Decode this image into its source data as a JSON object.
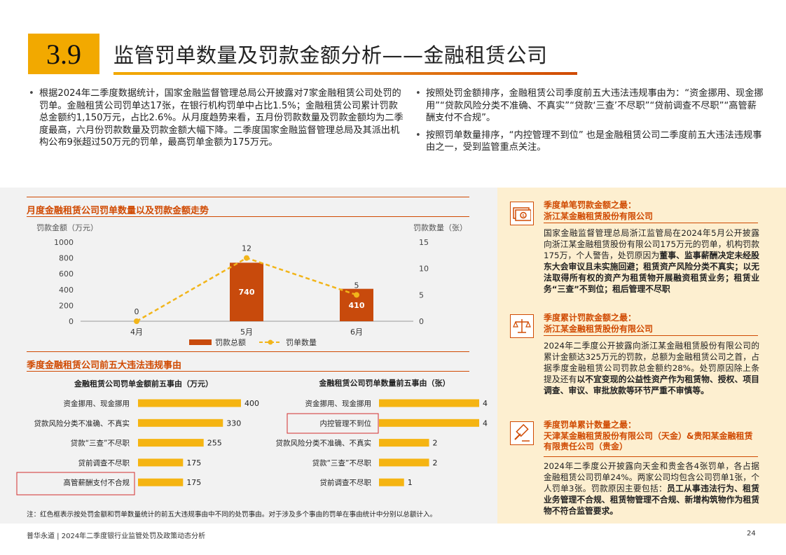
{
  "header": {
    "section_number": "3.9",
    "title": "监管罚单数量及罚款金额分析——金融租赁公司"
  },
  "bullets_left": [
    "根据2024年二季度数据统计，国家金融监督管理总局公开披露对7家金融租赁公司处罚的罚单。金融租赁公司罚单达17张，在银行机构罚单中占比1.5%；金融租赁公司累计罚款总金额约1,150万元，占比2.6%。从月度趋势来看，五月份罚款数量及罚款金额均为二季度最高，六月份罚款数量及罚款金额大幅下降。二季度国家金融监督管理总局及其派出机构公布9张超过50万元的罚单，最高罚单金额为175万元。"
  ],
  "bullets_right": [
    "按照处罚金额排序，金融租赁公司季度前五大违法违规事由为：“资金挪用、现金挪用”“贷款风险分类不准确、不真实”“贷款‘三查’不尽职”“贷前调查不尽职”“高管薪酬支付不合规”。",
    "按照罚单数量排序，“内控管理不到位” 也是金融租赁公司二季度前五大违法违规事由之一，受到监管重点关注。"
  ],
  "trend_section": {
    "title": "月度金融租赁公司罚单数量以及罚款金额走势"
  },
  "chart_data": [
    {
      "type": "bar",
      "combo": "bar+line",
      "categories": [
        "4月",
        "5月",
        "6月"
      ],
      "series": [
        {
          "name": "罚款总额",
          "type": "bar",
          "axis": "left",
          "values": [
            0,
            740,
            410
          ],
          "data_labels": [
            "",
            "740",
            "410"
          ]
        },
        {
          "name": "罚单数量",
          "type": "line",
          "style": "dashed",
          "axis": "right",
          "values": [
            0,
            12,
            5
          ],
          "data_labels": [
            "0",
            "12",
            "5"
          ]
        }
      ],
      "ylabel": "罚款金额（万元）",
      "y2label": "罚款数量（张）",
      "ylim": [
        0,
        1000
      ],
      "yticks": [
        "1000",
        "800",
        "600",
        "400",
        "200",
        "0"
      ],
      "y2lim": [
        0,
        15
      ],
      "y2ticks": [
        "15",
        "10",
        "5",
        "0"
      ],
      "grid": false,
      "legend": "bottom",
      "colors": {
        "bar": "#C84A0C",
        "line": "#F2B51A"
      }
    },
    {
      "type": "bar",
      "orientation": "horizontal",
      "title": "金融租赁公司罚单金额前五事由（万元）",
      "categories": [
        "资金挪用、现金挪用",
        "贷款风险分类不准确、不真实",
        "贷款“三查”不尽职",
        "贷前调查不尽职",
        "高管薪酬支付不合规"
      ],
      "values": [
        400,
        330,
        255,
        175,
        175
      ],
      "data_labels": [
        "400",
        "330",
        "255",
        "175",
        "175"
      ],
      "highlight": [
        "高管薪酬支付不合规"
      ],
      "color": "#F5B412"
    },
    {
      "type": "bar",
      "orientation": "horizontal",
      "title": "金融租赁公司罚单数量前五事由（张）",
      "categories": [
        "资金挪用、现金挪用",
        "内控管理不到位",
        "贷款风险分类不准确、不真实",
        "贷款“三查”不尽职",
        "贷前调查不尽职"
      ],
      "values": [
        4,
        4,
        2,
        2,
        1
      ],
      "data_labels": [
        "4",
        "4",
        "2",
        "2",
        "1"
      ],
      "highlight": [
        "内控管理不到位"
      ],
      "color": "#F5B412"
    }
  ],
  "reasons_section": {
    "title": "季度金融租赁公司前五大违法违规事由"
  },
  "note": "注：红色框表示按处罚金额和罚单数量统计的前五大违规事由中不同的处罚事由。对于涉及多个事由的罚单在事由统计中分别以总额计入。",
  "cards": [
    {
      "icon": "money-icon",
      "title_line1": "季度单笔罚款金额之最：",
      "title_line2": "浙江某金融租赁股份有限公司",
      "body_plain": "国家金融监督管理总局浙江监管局在2024年5月公开披露向浙江某金融租赁股份有限公司175万元的罚单，机构罚款175万，个人警告，处罚原因为",
      "body_bold": "董事、监事薪酬决定未经股东大会审议且未实施回避；租赁资产风险分类不真实；以无法取得所有权的资产为租赁物开展融资租赁业务；租赁业务“三查”不到位；租后管理不尽职"
    },
    {
      "icon": "scales-icon",
      "title_line1": "季度累计罚款金额之最：",
      "title_line2": "浙江某金融租赁股份有限公司",
      "body_plain": "2024年二季度公开披露向浙江某金融租赁股份有限公司的累计金额达325万元的罚款，总额为金融租赁公司之首，占据季度金融租赁公司罚款总金额约28%。处罚原因除上条提及还有",
      "body_bold": "以不宜变现的公益性资产作为租赁物、授权、项目调查、审议、审批放款等环节严重不审慎等。"
    },
    {
      "icon": "gavel-icon",
      "title_line1": "季度罚单累计数量之最：",
      "title_line2": "天津某金融租赁股份有限公司（天金）&贵阳某金融租赁有限责任公司（贵金）",
      "body_plain": "2024年二季度公开披露向天金和贵金各4张罚单，各占据金融租赁公司罚单24%。两家公司均包含公司罚单1张，个人罚单3张。罚款原因主要包括：",
      "body_bold": "员工从事违法行为、租赁业务管理不合规、租赁物管理不合规、新增构筑物作为租赁物不符合监管要求。"
    }
  ],
  "footer": {
    "left": "普华永道 | 2024年二季度银行业监管处罚及政策动态分析",
    "page": "24"
  }
}
